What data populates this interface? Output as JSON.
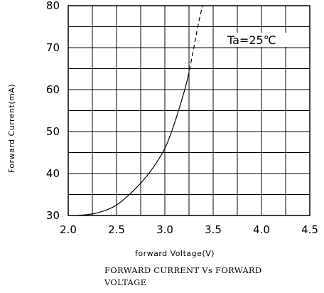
{
  "chart_data": {
    "type": "line",
    "title": "",
    "xlabel": "forward Voltage(V)",
    "ylabel": "Forward Current(mA)",
    "xlim": [
      2.0,
      4.5
    ],
    "ylim": [
      30,
      80
    ],
    "x_ticks": [
      "2.0",
      "2.5",
      "3.0",
      "3.5",
      "4.0",
      "4.5"
    ],
    "y_ticks": [
      "30",
      "40",
      "50",
      "60",
      "70",
      "80"
    ],
    "grid": true,
    "annotation": "Ta=25℃",
    "series": [
      {
        "style": "solid",
        "x": [
          2.1,
          2.3,
          2.5,
          2.7,
          2.85,
          3.0,
          3.1,
          3.2,
          3.24
        ],
        "y": [
          30,
          30.6,
          32.5,
          36.5,
          40.5,
          46,
          52,
          59.5,
          63
        ]
      },
      {
        "style": "dashed",
        "x": [
          3.24,
          3.3,
          3.35,
          3.39
        ],
        "y": [
          63,
          70,
          76,
          80
        ]
      }
    ]
  },
  "caption": "FORWARD CURRENT Vs FORWARD VOLTAGE"
}
